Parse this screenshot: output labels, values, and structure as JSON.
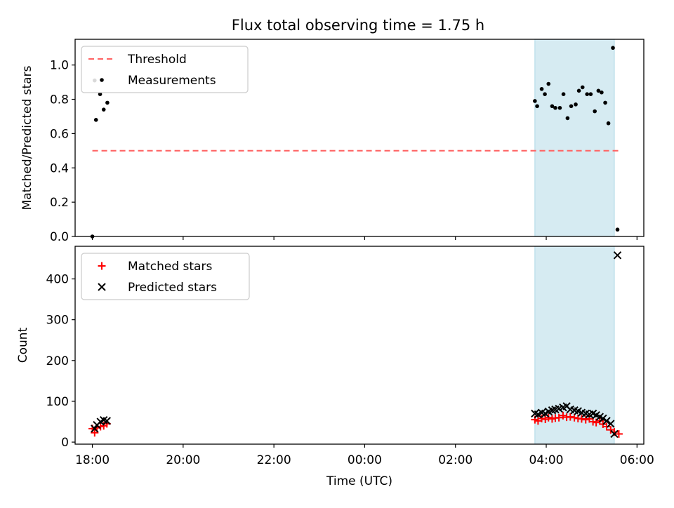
{
  "title": "Flux total observing time = 1.75 h",
  "chart_data": [
    {
      "type": "scatter",
      "panel": "top",
      "ylabel": "Matched/Predicted stars",
      "xlabel": "",
      "ylim": [
        0,
        1.15
      ],
      "yticks": [
        0.0,
        0.2,
        0.4,
        0.6,
        0.8,
        1.0
      ],
      "ytick_labels": [
        "0.0",
        "0.2",
        "0.4",
        "0.6",
        "0.8",
        "1.0"
      ],
      "xlim_hours": [
        17.62,
        30.15
      ],
      "xticks_hours": [
        18,
        20,
        22,
        24,
        26,
        28,
        30
      ],
      "xtick_labels": [
        "",
        "",
        "",
        "",
        "",
        "",
        ""
      ],
      "grid": false,
      "legend_position": "top-left",
      "shaded_span_hours": [
        27.75,
        29.5
      ],
      "shade_color": "#add8e6",
      "threshold": {
        "name": "Threshold",
        "y": 0.5,
        "x_hours": [
          18.0,
          29.6
        ],
        "color": "#ff6666",
        "style": "dashed"
      },
      "series": [
        {
          "name": "Measurements",
          "marker": "dot",
          "color": "#000000",
          "x_hours": [
            18.0,
            18.05,
            18.08,
            18.17,
            18.25,
            18.33,
            27.75,
            27.8,
            27.9,
            27.97,
            28.05,
            28.13,
            28.2,
            28.3,
            28.38,
            28.47,
            28.55,
            28.65,
            28.72,
            28.8,
            28.9,
            28.98,
            29.07,
            29.15,
            29.22,
            29.3,
            29.37,
            29.47,
            29.57
          ],
          "y": [
            0.0,
            0.91,
            0.68,
            0.83,
            0.74,
            0.78,
            0.79,
            0.76,
            0.86,
            0.83,
            0.89,
            0.76,
            0.75,
            0.75,
            0.83,
            0.69,
            0.76,
            0.77,
            0.85,
            0.87,
            0.83,
            0.83,
            0.73,
            0.85,
            0.84,
            0.78,
            0.66,
            1.1,
            0.04
          ]
        }
      ]
    },
    {
      "type": "scatter",
      "panel": "bottom",
      "ylabel": "Count",
      "xlabel": "Time (UTC)",
      "ylim": [
        -5,
        480
      ],
      "yticks": [
        0,
        100,
        200,
        300,
        400
      ],
      "ytick_labels": [
        "0",
        "100",
        "200",
        "300",
        "400"
      ],
      "xlim_hours": [
        17.62,
        30.15
      ],
      "xticks_hours": [
        18,
        20,
        22,
        24,
        26,
        28,
        30
      ],
      "xtick_labels": [
        "18:00",
        "20:00",
        "22:00",
        "00:00",
        "02:00",
        "04:00",
        "06:00"
      ],
      "grid": false,
      "legend_position": "top-left",
      "shaded_span_hours": [
        27.75,
        29.5
      ],
      "shade_color": "#add8e6",
      "series": [
        {
          "name": "Matched stars",
          "marker": "plus",
          "color": "#ff0000",
          "x_hours": [
            18.0,
            18.05,
            18.1,
            18.18,
            18.25,
            18.32,
            27.75,
            27.82,
            27.9,
            27.98,
            28.05,
            28.13,
            28.2,
            28.28,
            28.37,
            28.45,
            28.53,
            28.62,
            28.7,
            28.78,
            28.87,
            28.95,
            29.03,
            29.1,
            29.18,
            29.25,
            29.33,
            29.42,
            29.5,
            29.6
          ],
          "y": [
            33,
            23,
            35,
            38,
            40,
            45,
            55,
            52,
            58,
            56,
            60,
            57,
            59,
            60,
            65,
            61,
            62,
            60,
            58,
            57,
            55,
            57,
            50,
            48,
            52,
            44,
            38,
            30,
            25,
            20
          ]
        },
        {
          "name": "Predicted stars",
          "marker": "x",
          "color": "#000000",
          "x_hours": [
            18.05,
            18.1,
            18.18,
            18.25,
            18.32,
            27.75,
            27.82,
            27.9,
            27.98,
            28.05,
            28.13,
            28.2,
            28.28,
            28.37,
            28.45,
            28.53,
            28.62,
            28.7,
            28.78,
            28.87,
            28.95,
            29.03,
            29.1,
            29.18,
            29.25,
            29.33,
            29.42,
            29.5,
            29.57
          ],
          "y": [
            33,
            42,
            50,
            54,
            52,
            70,
            68,
            72,
            70,
            75,
            78,
            80,
            82,
            85,
            88,
            80,
            78,
            76,
            72,
            70,
            68,
            70,
            66,
            62,
            58,
            52,
            45,
            20,
            458
          ]
        }
      ]
    }
  ]
}
